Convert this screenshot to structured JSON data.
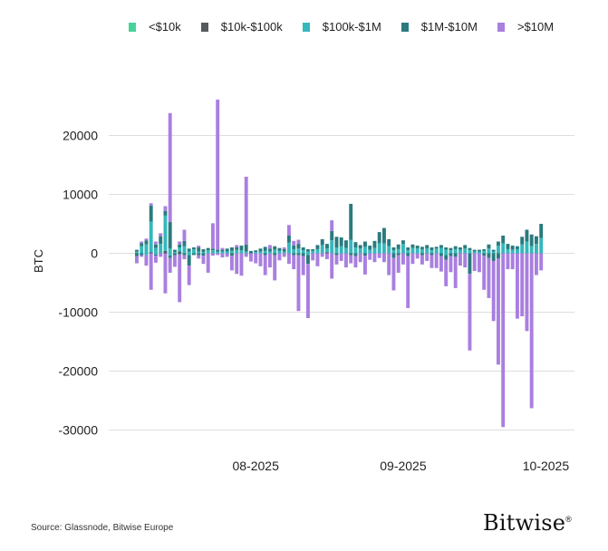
{
  "chart_data": {
    "type": "bar",
    "stacked": true,
    "title": "",
    "xlabel": "",
    "ylabel": "BTC",
    "ylim": [
      -32000,
      27000
    ],
    "yticks": [
      20000,
      10000,
      0,
      -10000,
      -20000,
      -30000
    ],
    "ytick_labels": [
      "20000",
      "10000",
      "0",
      "-10000",
      "-20000",
      "-30000"
    ],
    "x_tick_labels": [
      {
        "label": "08-2025",
        "index": 25
      },
      {
        "label": "09-2025",
        "index": 56
      },
      {
        "label": "10-2025",
        "index": 86
      }
    ],
    "legend_position": "top",
    "series": [
      {
        "name": "<$10k",
        "color": "#46d39a",
        "key": "s10k"
      },
      {
        "name": "$10k-$100k",
        "color": "#555a5d",
        "key": "s100k"
      },
      {
        "name": "$100k-$1M",
        "color": "#35b8bb",
        "key": "s1m"
      },
      {
        "name": "$1M-$10M",
        "color": "#2b7a7e",
        "key": "s10m"
      },
      {
        "name": ">$10M",
        "color": "#a97fdf",
        "key": "sbig"
      }
    ],
    "bars": [
      {
        "pos": [
          0,
          0,
          300,
          300,
          0
        ],
        "neg": [
          0,
          0,
          0,
          -500,
          -1200
        ]
      },
      {
        "pos": [
          0,
          0,
          1200,
          500,
          300
        ],
        "neg": [
          0,
          0,
          0,
          -300,
          -300
        ]
      },
      {
        "pos": [
          0,
          0,
          1500,
          700,
          300
        ],
        "neg": [
          0,
          0,
          -300,
          0,
          -1800
        ]
      },
      {
        "pos": [
          0,
          200,
          5200,
          2700,
          400
        ],
        "neg": [
          0,
          0,
          0,
          0,
          -6200
        ]
      },
      {
        "pos": [
          0,
          0,
          900,
          600,
          500
        ],
        "neg": [
          0,
          0,
          -200,
          -200,
          -1200
        ]
      },
      {
        "pos": [
          0,
          0,
          1600,
          1300,
          500
        ],
        "neg": [
          0,
          0,
          0,
          0,
          -600
        ]
      },
      {
        "pos": [
          0,
          400,
          6000,
          800,
          800
        ],
        "neg": [
          0,
          0,
          0,
          0,
          -6800
        ]
      },
      {
        "pos": [
          0,
          0,
          800,
          4500,
          18500
        ],
        "neg": [
          0,
          0,
          -400,
          -400,
          -2500
        ]
      },
      {
        "pos": [
          0,
          0,
          200,
          400,
          0
        ],
        "neg": [
          0,
          0,
          0,
          -300,
          -2000
        ]
      },
      {
        "pos": [
          0,
          300,
          700,
          500,
          500
        ],
        "neg": [
          0,
          0,
          0,
          -200,
          -8100
        ]
      },
      {
        "pos": [
          0,
          0,
          1200,
          900,
          1900
        ],
        "neg": [
          0,
          0,
          0,
          -300,
          -700
        ]
      },
      {
        "pos": [
          0,
          0,
          300,
          500,
          0
        ],
        "neg": [
          0,
          0,
          -300,
          -1800,
          -3300
        ]
      },
      {
        "pos": [
          0,
          0,
          700,
          300,
          0
        ],
        "neg": [
          0,
          0,
          0,
          -300,
          0
        ]
      },
      {
        "pos": [
          0,
          0,
          300,
          700,
          300
        ],
        "neg": [
          0,
          0,
          0,
          -300,
          -600
        ]
      },
      {
        "pos": [
          0,
          0,
          200,
          500,
          0
        ],
        "neg": [
          0,
          0,
          0,
          -400,
          -1400
        ]
      },
      {
        "pos": [
          0,
          0,
          500,
          400,
          0
        ],
        "neg": [
          0,
          0,
          0,
          0,
          -3300
        ]
      },
      {
        "pos": [
          0,
          0,
          500,
          300,
          4300
        ],
        "neg": [
          0,
          0,
          0,
          0,
          -400
        ]
      },
      {
        "pos": [
          0,
          0,
          300,
          300,
          25500
        ],
        "neg": [
          0,
          0,
          0,
          0,
          -300
        ]
      },
      {
        "pos": [
          0,
          0,
          300,
          300,
          300
        ],
        "neg": [
          0,
          0,
          0,
          0,
          -700
        ]
      },
      {
        "pos": [
          0,
          0,
          300,
          500,
          0
        ],
        "neg": [
          0,
          0,
          0,
          0,
          -600
        ]
      },
      {
        "pos": [
          0,
          0,
          400,
          600,
          0
        ],
        "neg": [
          0,
          0,
          0,
          -400,
          -2500
        ]
      },
      {
        "pos": [
          0,
          0,
          600,
          400,
          400
        ],
        "neg": [
          0,
          0,
          0,
          0,
          -3500
        ]
      },
      {
        "pos": [
          0,
          0,
          500,
          800,
          0
        ],
        "neg": [
          0,
          0,
          0,
          0,
          -3800
        ]
      },
      {
        "pos": [
          0,
          0,
          300,
          1200,
          11500
        ],
        "neg": [
          0,
          0,
          0,
          0,
          -600
        ]
      },
      {
        "pos": [
          0,
          0,
          0,
          400,
          0
        ],
        "neg": [
          0,
          0,
          0,
          0,
          -1400
        ]
      },
      {
        "pos": [
          0,
          0,
          200,
          300,
          0
        ],
        "neg": [
          0,
          0,
          0,
          0,
          -1700
        ]
      },
      {
        "pos": [
          0,
          0,
          300,
          500,
          0
        ],
        "neg": [
          0,
          0,
          0,
          0,
          -2200
        ]
      },
      {
        "pos": [
          0,
          0,
          400,
          700,
          0
        ],
        "neg": [
          0,
          0,
          0,
          -300,
          -3400
        ]
      },
      {
        "pos": [
          0,
          0,
          300,
          500,
          600
        ],
        "neg": [
          0,
          0,
          0,
          0,
          -2400
        ]
      },
      {
        "pos": [
          0,
          0,
          600,
          600,
          0
        ],
        "neg": [
          0,
          0,
          0,
          -300,
          -4300
        ]
      },
      {
        "pos": [
          0,
          0,
          400,
          500,
          0
        ],
        "neg": [
          0,
          0,
          0,
          0,
          -1200
        ]
      },
      {
        "pos": [
          0,
          0,
          300,
          400,
          300
        ],
        "neg": [
          0,
          0,
          0,
          0,
          -600
        ]
      },
      {
        "pos": [
          0,
          0,
          1800,
          1200,
          1800
        ],
        "neg": [
          0,
          0,
          0,
          0,
          -1800
        ]
      },
      {
        "pos": [
          0,
          0,
          700,
          600,
          800
        ],
        "neg": [
          0,
          0,
          0,
          -300,
          -2400
        ]
      },
      {
        "pos": [
          0,
          0,
          800,
          800,
          700
        ],
        "neg": [
          0,
          0,
          0,
          -300,
          -9500
        ]
      },
      {
        "pos": [
          0,
          0,
          500,
          500,
          0
        ],
        "neg": [
          0,
          0,
          0,
          -500,
          -3200
        ]
      },
      {
        "pos": [
          0,
          0,
          300,
          400,
          0
        ],
        "neg": [
          0,
          0,
          -300,
          -1500,
          -9200
        ]
      },
      {
        "pos": [
          0,
          0,
          400,
          300,
          0
        ],
        "neg": [
          0,
          0,
          0,
          0,
          -1200
        ]
      },
      {
        "pos": [
          0,
          0,
          700,
          700,
          0
        ],
        "neg": [
          0,
          0,
          0,
          0,
          -2200
        ]
      },
      {
        "pos": [
          0,
          0,
          1400,
          1000,
          0
        ],
        "neg": [
          0,
          0,
          0,
          0,
          -600
        ]
      },
      {
        "pos": [
          0,
          200,
          600,
          800,
          0
        ],
        "neg": [
          0,
          0,
          0,
          0,
          -1000
        ]
      },
      {
        "pos": [
          0,
          0,
          2200,
          1600,
          1800
        ],
        "neg": [
          0,
          0,
          0,
          0,
          -4300
        ]
      },
      {
        "pos": [
          0,
          0,
          1000,
          1800,
          0
        ],
        "neg": [
          0,
          0,
          0,
          -300,
          -1600
        ]
      },
      {
        "pos": [
          0,
          0,
          1200,
          1500,
          0
        ],
        "neg": [
          0,
          0,
          0,
          0,
          -1300
        ]
      },
      {
        "pos": [
          0,
          0,
          900,
          1300,
          0
        ],
        "neg": [
          0,
          0,
          0,
          0,
          -2400
        ]
      },
      {
        "pos": [
          0,
          0,
          2300,
          6100,
          0
        ],
        "neg": [
          0,
          0,
          0,
          -300,
          -1400
        ]
      },
      {
        "pos": [
          0,
          0,
          1000,
          900,
          0
        ],
        "neg": [
          0,
          0,
          0,
          -500,
          -1900
        ]
      },
      {
        "pos": [
          0,
          0,
          800,
          600,
          0
        ],
        "neg": [
          0,
          0,
          0,
          0,
          -1500
        ]
      },
      {
        "pos": [
          0,
          0,
          1100,
          900,
          0
        ],
        "neg": [
          0,
          0,
          0,
          -400,
          -3200
        ]
      },
      {
        "pos": [
          0,
          0,
          600,
          700,
          0
        ],
        "neg": [
          0,
          0,
          0,
          0,
          -1100
        ]
      },
      {
        "pos": [
          0,
          0,
          900,
          1200,
          0
        ],
        "neg": [
          0,
          0,
          0,
          0,
          -1500
        ]
      },
      {
        "pos": [
          0,
          0,
          1700,
          1900,
          0
        ],
        "neg": [
          0,
          0,
          0,
          0,
          -800
        ]
      },
      {
        "pos": [
          0,
          0,
          1700,
          2600,
          0
        ],
        "neg": [
          0,
          0,
          0,
          0,
          -1500
        ]
      },
      {
        "pos": [
          0,
          0,
          1200,
          1200,
          0
        ],
        "neg": [
          0,
          0,
          0,
          0,
          -3700
        ]
      },
      {
        "pos": [
          0,
          0,
          500,
          500,
          0
        ],
        "neg": [
          0,
          0,
          0,
          -800,
          -5500
        ]
      },
      {
        "pos": [
          0,
          0,
          700,
          800,
          0
        ],
        "neg": [
          0,
          0,
          0,
          -300,
          -3000
        ]
      },
      {
        "pos": [
          0,
          0,
          1600,
          600,
          0
        ],
        "neg": [
          0,
          0,
          0,
          0,
          -1900
        ]
      },
      {
        "pos": [
          0,
          0,
          500,
          500,
          0
        ],
        "neg": [
          0,
          0,
          0,
          -500,
          -8800
        ]
      },
      {
        "pos": [
          0,
          0,
          900,
          600,
          0
        ],
        "neg": [
          0,
          0,
          0,
          0,
          -1800
        ]
      },
      {
        "pos": [
          0,
          0,
          800,
          500,
          0
        ],
        "neg": [
          0,
          0,
          0,
          0,
          -900
        ]
      },
      {
        "pos": [
          0,
          0,
          700,
          400,
          0
        ],
        "neg": [
          0,
          0,
          0,
          -300,
          -1600
        ]
      },
      {
        "pos": [
          0,
          0,
          800,
          600,
          0
        ],
        "neg": [
          0,
          0,
          0,
          0,
          -1300
        ]
      },
      {
        "pos": [
          0,
          0,
          500,
          500,
          0
        ],
        "neg": [
          0,
          0,
          0,
          -300,
          -2200
        ]
      },
      {
        "pos": [
          0,
          0,
          800,
          300,
          0
        ],
        "neg": [
          0,
          0,
          0,
          0,
          -2500
        ]
      },
      {
        "pos": [
          0,
          0,
          900,
          500,
          0
        ],
        "neg": [
          0,
          0,
          0,
          -500,
          -2600
        ]
      },
      {
        "pos": [
          0,
          0,
          600,
          400,
          0
        ],
        "neg": [
          0,
          0,
          -300,
          -800,
          -4500
        ]
      },
      {
        "pos": [
          0,
          0,
          500,
          400,
          0
        ],
        "neg": [
          0,
          0,
          0,
          -500,
          -2700
        ]
      },
      {
        "pos": [
          0,
          0,
          700,
          500,
          0
        ],
        "neg": [
          0,
          0,
          0,
          -600,
          -5300
        ]
      },
      {
        "pos": [
          0,
          0,
          600,
          400,
          0
        ],
        "neg": [
          0,
          0,
          0,
          0,
          -2100
        ]
      },
      {
        "pos": [
          0,
          0,
          800,
          600,
          0
        ],
        "neg": [
          0,
          0,
          0,
          0,
          -2400
        ]
      },
      {
        "pos": [
          0,
          0,
          500,
          400,
          0
        ],
        "neg": [
          0,
          0,
          0,
          -3500,
          -13000
        ]
      },
      {
        "pos": [
          0,
          0,
          300,
          300,
          0
        ],
        "neg": [
          0,
          0,
          0,
          0,
          -3000
        ]
      },
      {
        "pos": [
          0,
          0,
          300,
          300,
          0
        ],
        "neg": [
          0,
          0,
          0,
          0,
          -3200
        ]
      },
      {
        "pos": [
          0,
          0,
          400,
          300,
          0
        ],
        "neg": [
          0,
          0,
          0,
          -400,
          -5800
        ]
      },
      {
        "pos": [
          0,
          0,
          800,
          700,
          0
        ],
        "neg": [
          0,
          0,
          0,
          -800,
          -6800
        ]
      },
      {
        "pos": [
          0,
          0,
          300,
          300,
          0
        ],
        "neg": [
          0,
          0,
          0,
          -1300,
          -10200
        ]
      },
      {
        "pos": [
          0,
          0,
          1300,
          700,
          0
        ],
        "neg": [
          0,
          0,
          0,
          -900,
          -18000
        ]
      },
      {
        "pos": [
          0,
          0,
          1700,
          1300,
          0
        ],
        "neg": [
          0,
          0,
          0,
          0,
          -29500
        ]
      },
      {
        "pos": [
          0,
          0,
          700,
          900,
          0
        ],
        "neg": [
          0,
          0,
          0,
          0,
          -2700
        ]
      },
      {
        "pos": [
          0,
          0,
          600,
          700,
          0
        ],
        "neg": [
          0,
          0,
          0,
          0,
          -2700
        ]
      },
      {
        "pos": [
          0,
          0,
          700,
          500,
          0
        ],
        "neg": [
          0,
          0,
          0,
          0,
          -11100
        ]
      },
      {
        "pos": [
          0,
          0,
          1500,
          1300,
          0
        ],
        "neg": [
          0,
          0,
          0,
          0,
          -10700
        ]
      },
      {
        "pos": [
          0,
          0,
          2000,
          2000,
          0
        ],
        "neg": [
          0,
          0,
          0,
          0,
          -13200
        ]
      },
      {
        "pos": [
          0,
          0,
          1200,
          2000,
          0
        ],
        "neg": [
          0,
          0,
          0,
          0,
          -26300
        ]
      },
      {
        "pos": [
          0,
          0,
          1600,
          1300,
          0
        ],
        "neg": [
          0,
          0,
          0,
          0,
          -3700
        ]
      },
      {
        "pos": [
          0,
          0,
          2600,
          2400,
          0
        ],
        "neg": [
          0,
          0,
          0,
          0,
          -2900
        ]
      }
    ]
  },
  "footer": {
    "source": "Source: Glassnode, Bitwise Europe",
    "brand": "Bitwise",
    "brand_mark": "®"
  }
}
